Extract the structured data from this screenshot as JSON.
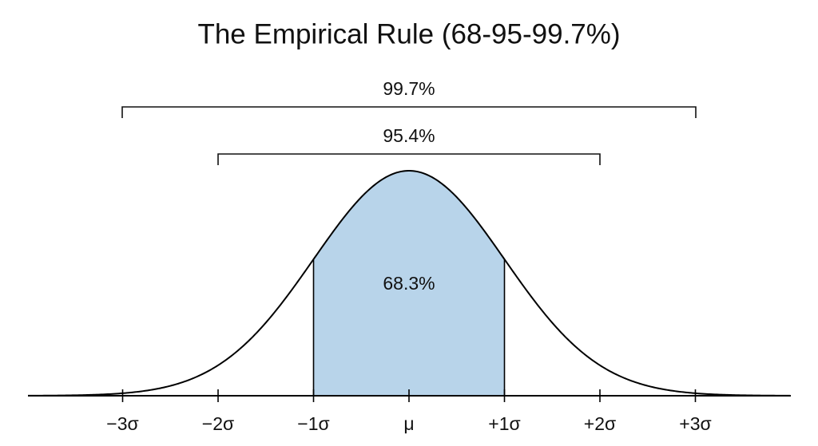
{
  "title": "The Empirical Rule (68-95-99.7%)",
  "brackets": [
    {
      "label": "99.7%"
    },
    {
      "label": "95.4%"
    }
  ],
  "center_label": "68.3%",
  "axis_labels": [
    "−3σ",
    "−2σ",
    "−1σ",
    "μ",
    "+1σ",
    "+2σ",
    "+3σ"
  ]
}
